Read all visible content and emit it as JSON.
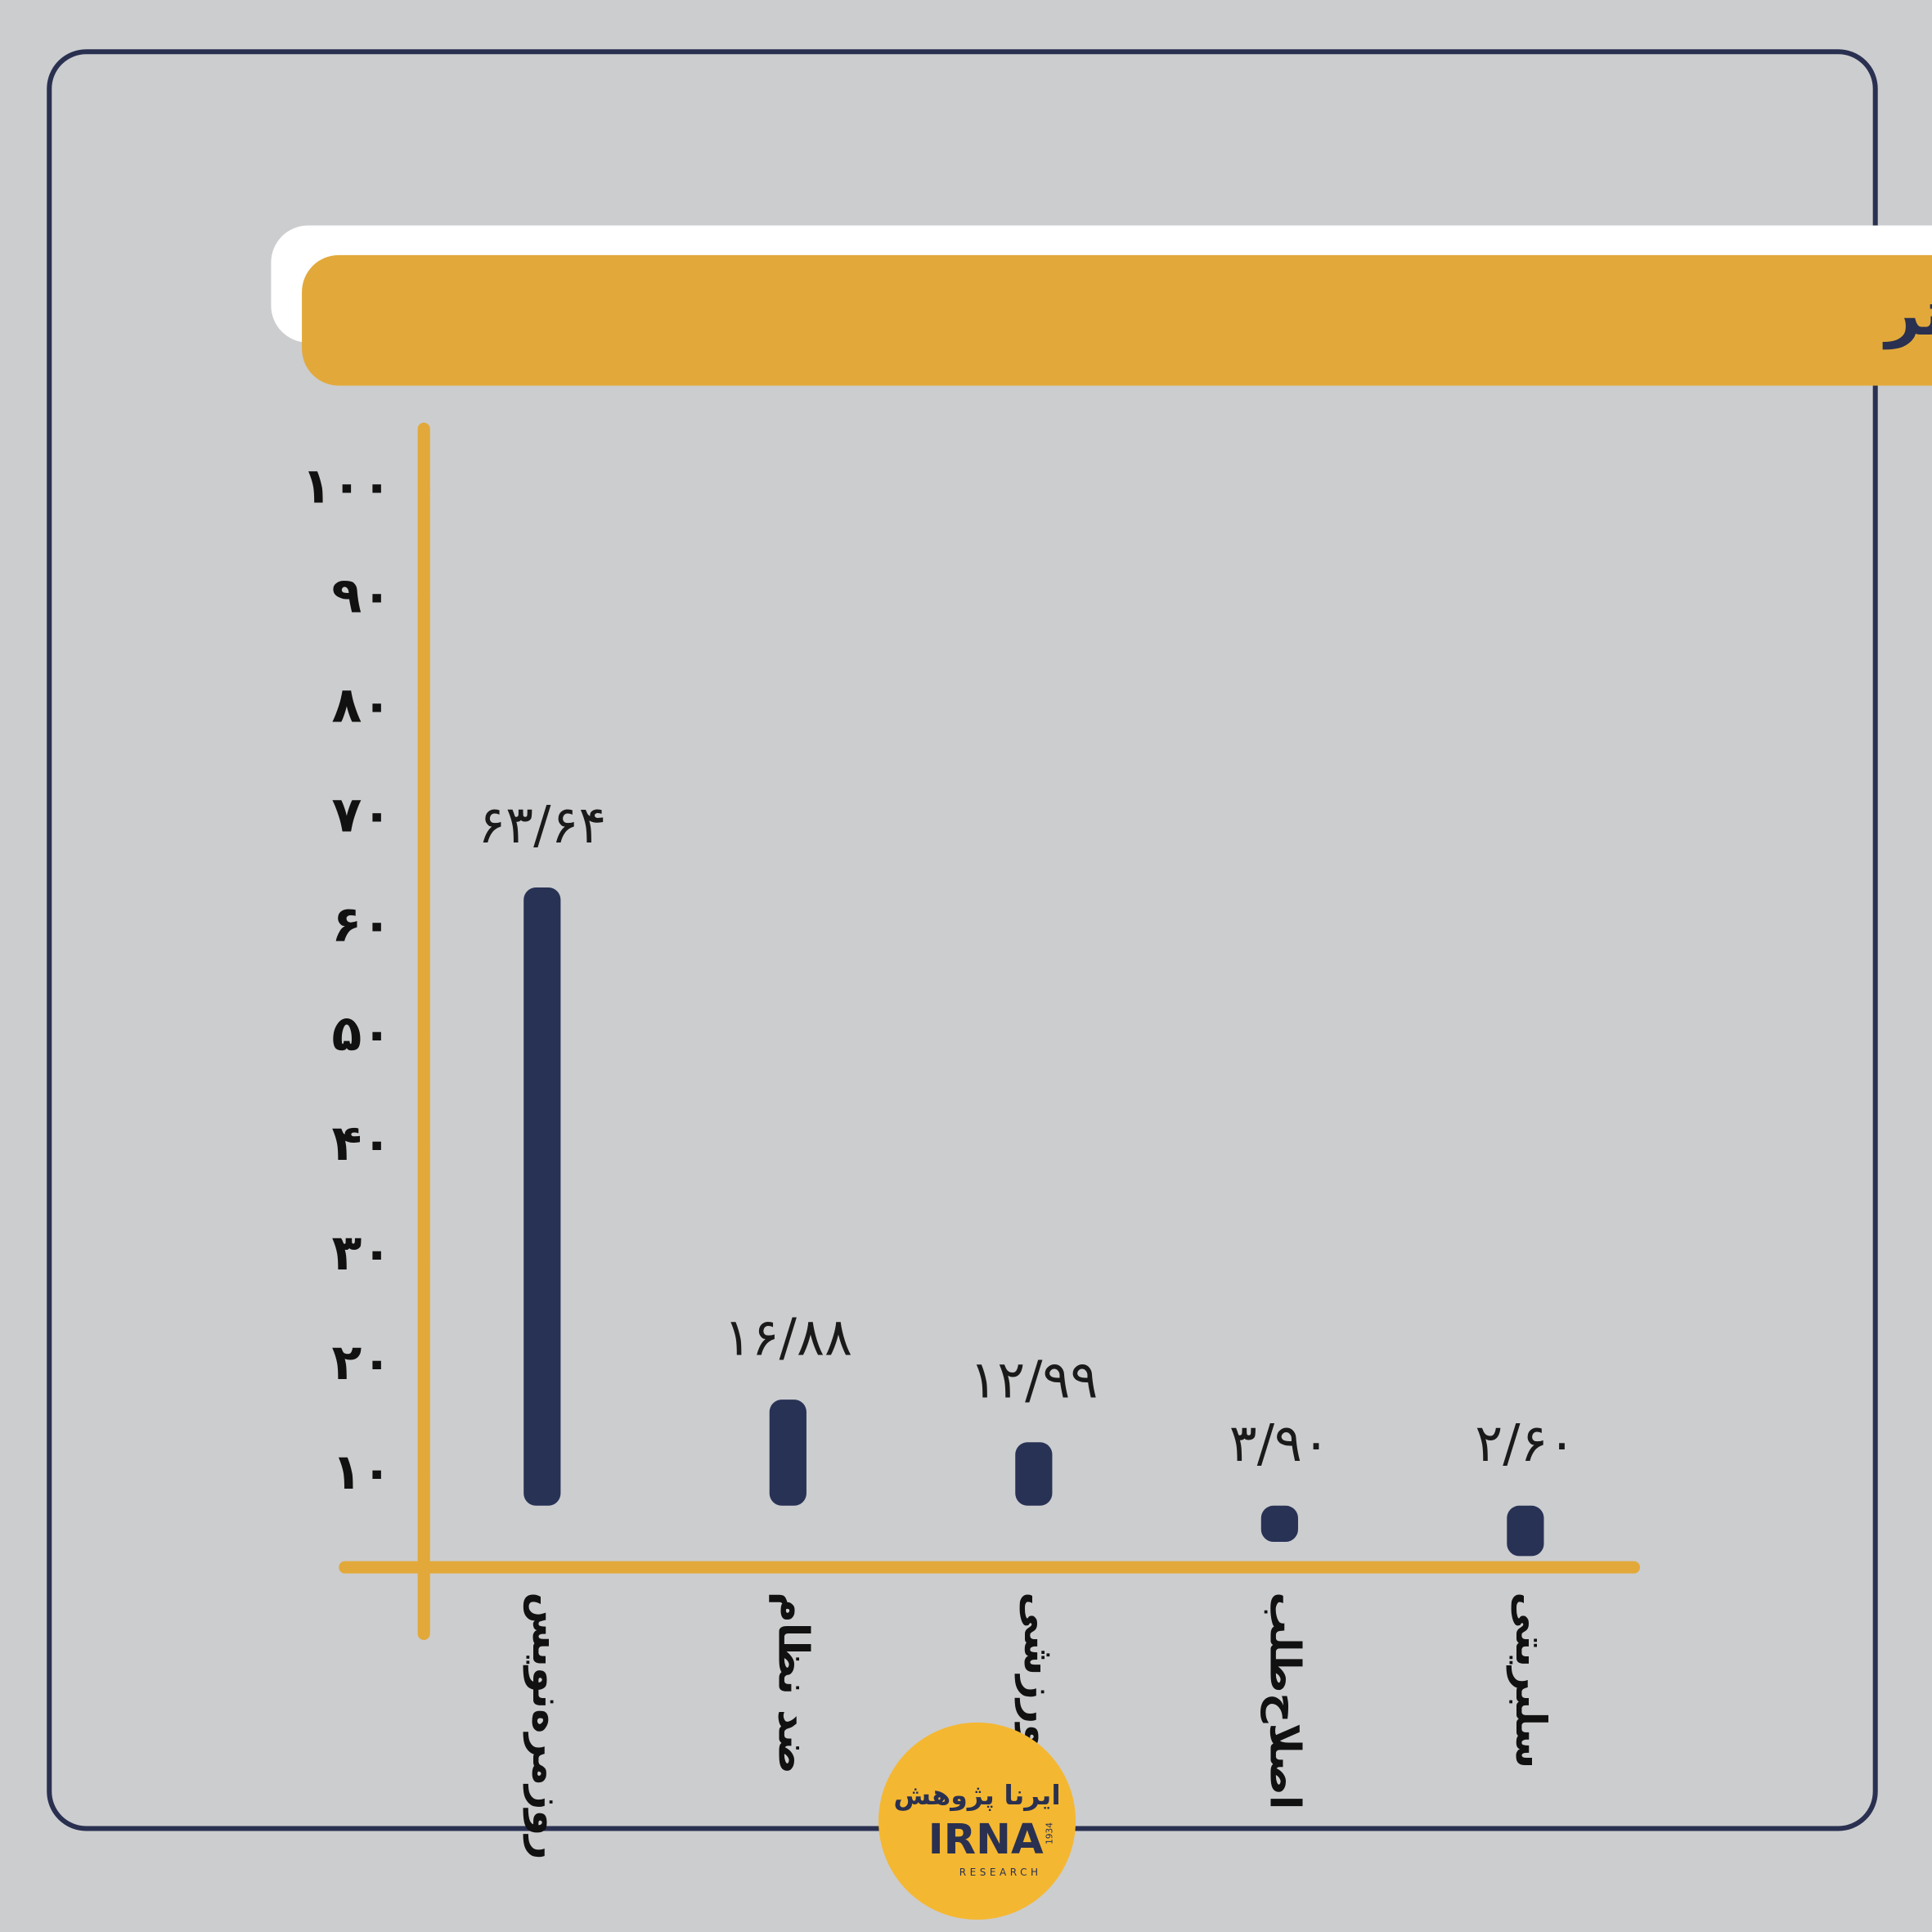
{
  "chart_data": {
    "type": "bar",
    "title": "گرایش‌های سیاسی فعال در کمپین «برای» در توییتر",
    "categories": [
      "روزمره‌نویس",
      "ضد نظام",
      "ورزشی",
      "اصلاح‌طلب",
      "سلبریتی"
    ],
    "values": [
      63.64,
      16.88,
      12.99,
      3.9,
      2.6
    ],
    "value_labels": [
      "۶۳/۶۴",
      "۱۶/۸۸",
      "۱۲/۹۹",
      "۳/۹۰",
      "۲/۶۰"
    ],
    "color": "#283255",
    "ylim": [
      0,
      100
    ],
    "yticks": [
      {
        "value": 10,
        "label": "۱۰"
      },
      {
        "value": 20,
        "label": "۲۰"
      },
      {
        "value": 30,
        "label": "۳۰"
      },
      {
        "value": 40,
        "label": "۴۰"
      },
      {
        "value": 50,
        "label": "۵۰"
      },
      {
        "value": 60,
        "label": "۶۰"
      },
      {
        "value": 70,
        "label": "۷۰"
      },
      {
        "value": 80,
        "label": "۸۰"
      },
      {
        "value": 90,
        "label": "۹۰"
      },
      {
        "value": 100,
        "label": "۱۰۰"
      }
    ],
    "grid": false
  },
  "logo": {
    "name": "ایرنا پژوهش",
    "brand": "IRNA",
    "sub": "RESEARCH",
    "year": "1934"
  }
}
